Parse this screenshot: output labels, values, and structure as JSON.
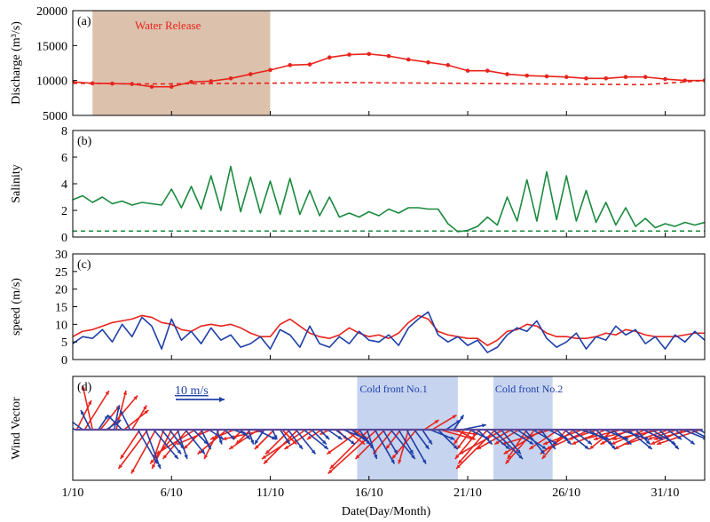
{
  "chart_data": [
    {
      "panel": "(a)",
      "type": "line",
      "ylabel": "Discharge (m³/s)",
      "ylim": [
        5000,
        20000
      ],
      "yticks": [
        5000,
        10000,
        15000,
        20000
      ],
      "annotation": "Water Release",
      "shaded_x": [
        2,
        11
      ],
      "series": [
        {
          "style": "solid-markers",
          "color": "#e8241c",
          "x": [
            1,
            2,
            3,
            4,
            5,
            6,
            7,
            8,
            9,
            10,
            11,
            12,
            13,
            14,
            15,
            16,
            17,
            18,
            19,
            20,
            21,
            22,
            23,
            24,
            25,
            26,
            27,
            28,
            29,
            30,
            31,
            32,
            33
          ],
          "values": [
            9800,
            9600,
            9550,
            9500,
            9100,
            9100,
            9800,
            9900,
            10300,
            10900,
            11500,
            12200,
            12300,
            13300,
            13700,
            13800,
            13500,
            13000,
            12600,
            12200,
            11400,
            11400,
            10900,
            10700,
            10600,
            10500,
            10300,
            10300,
            10500,
            10500,
            10200,
            10000,
            10000
          ]
        },
        {
          "style": "dashed",
          "color": "#e8241c",
          "x": [
            1,
            5,
            10,
            15,
            20,
            25,
            30,
            33
          ],
          "values": [
            9600,
            9500,
            9600,
            9700,
            9600,
            9500,
            9400,
            10000
          ]
        }
      ]
    },
    {
      "panel": "(b)",
      "type": "line",
      "ylabel": "Salinity",
      "ylim": [
        0,
        8
      ],
      "yticks": [
        0,
        2,
        4,
        6,
        8
      ],
      "series": [
        {
          "style": "solid",
          "color": "#1a8a3e",
          "x": [
            1,
            1.5,
            2,
            2.5,
            3,
            3.5,
            4,
            4.5,
            5,
            5.5,
            6,
            6.5,
            7,
            7.5,
            8,
            8.5,
            9,
            9.5,
            10,
            10.5,
            11,
            11.5,
            12,
            12.5,
            13,
            13.5,
            14,
            14.5,
            15,
            15.5,
            16,
            16.5,
            17,
            17.5,
            18,
            18.5,
            19,
            19.5,
            20,
            20.5,
            21,
            21.5,
            22,
            22.5,
            23,
            23.5,
            24,
            24.5,
            25,
            25.5,
            26,
            26.5,
            27,
            27.5,
            28,
            28.5,
            29,
            29.5,
            30,
            30.5,
            31,
            31.5,
            32,
            32.5,
            33
          ],
          "values": [
            2.8,
            3.1,
            2.6,
            3.0,
            2.5,
            2.7,
            2.4,
            2.6,
            2.5,
            2.4,
            3.6,
            2.2,
            3.8,
            2.1,
            4.6,
            2.0,
            5.3,
            1.9,
            4.5,
            1.8,
            4.2,
            1.7,
            4.4,
            1.7,
            3.5,
            1.6,
            3.0,
            1.5,
            1.8,
            1.5,
            1.9,
            1.6,
            2.1,
            1.8,
            2.2,
            2.2,
            2.1,
            2.1,
            1.0,
            0.4,
            0.5,
            0.8,
            1.5,
            0.9,
            3.0,
            1.2,
            4.3,
            1.2,
            4.9,
            1.3,
            4.6,
            1.2,
            3.5,
            1.1,
            2.6,
            0.9,
            2.2,
            0.8,
            1.4,
            0.7,
            1.0,
            0.8,
            1.1,
            0.9,
            1.1
          ]
        },
        {
          "style": "dashed",
          "color": "#1a8a3e",
          "x": [
            1,
            33
          ],
          "values": [
            0.45,
            0.45
          ]
        }
      ]
    },
    {
      "panel": "(c)",
      "type": "line",
      "ylabel": "speed (m/s)",
      "ylim": [
        0,
        30
      ],
      "yticks": [
        0,
        5,
        10,
        15,
        20,
        25,
        30
      ],
      "series": [
        {
          "style": "solid",
          "color": "#e8241c",
          "x": [
            1,
            1.5,
            2,
            2.5,
            3,
            3.5,
            4,
            4.5,
            5,
            5.5,
            6,
            6.5,
            7,
            7.5,
            8,
            8.5,
            9,
            9.5,
            10,
            10.5,
            11,
            11.5,
            12,
            12.5,
            13,
            13.5,
            14,
            14.5,
            15,
            15.5,
            16,
            16.5,
            17,
            17.5,
            18,
            18.5,
            19,
            19.5,
            20,
            20.5,
            21,
            21.5,
            22,
            22.5,
            23,
            23.5,
            24,
            24.5,
            25,
            25.5,
            26,
            26.5,
            27,
            27.5,
            28,
            28.5,
            29,
            29.5,
            30,
            30.5,
            31,
            31.5,
            32,
            32.5,
            33
          ],
          "values": [
            6.5,
            8.0,
            8.5,
            9.5,
            10.5,
            11.0,
            11.5,
            12.5,
            12.0,
            10.5,
            10.0,
            8.5,
            8.0,
            9.5,
            10.0,
            9.5,
            10.0,
            9.0,
            7.5,
            6.5,
            6.5,
            10.0,
            11.5,
            9.5,
            7.5,
            6.5,
            6.0,
            7.0,
            9.0,
            7.5,
            6.5,
            7.0,
            6.0,
            7.5,
            10.5,
            12.5,
            11.5,
            8.0,
            7.0,
            6.5,
            6.0,
            6.0,
            4.0,
            5.5,
            8.0,
            8.5,
            10.0,
            9.5,
            7.5,
            6.5,
            6.5,
            6.0,
            6.0,
            6.5,
            7.5,
            7.0,
            8.5,
            8.0,
            7.0,
            6.5,
            6.5,
            6.5,
            7.0,
            7.5,
            7.5
          ]
        },
        {
          "style": "solid",
          "color": "#1f3fa8",
          "x": [
            1,
            1.5,
            2,
            2.5,
            3,
            3.5,
            4,
            4.5,
            5,
            5.5,
            6,
            6.5,
            7,
            7.5,
            8,
            8.5,
            9,
            9.5,
            10,
            10.5,
            11,
            11.5,
            12,
            12.5,
            13,
            13.5,
            14,
            14.5,
            15,
            15.5,
            16,
            16.5,
            17,
            17.5,
            18,
            18.5,
            19,
            19.5,
            20,
            20.5,
            21,
            21.5,
            22,
            22.5,
            23,
            23.5,
            24,
            24.5,
            25,
            25.5,
            26,
            26.5,
            27,
            27.5,
            28,
            28.5,
            29,
            29.5,
            30,
            30.5,
            31,
            31.5,
            32,
            32.5,
            33
          ],
          "values": [
            4.5,
            6.5,
            6.0,
            8.5,
            5.0,
            10.0,
            6.5,
            12.0,
            9.5,
            3.0,
            11.5,
            5.5,
            8.0,
            4.5,
            9.0,
            5.5,
            7.0,
            3.5,
            4.5,
            6.5,
            3.0,
            8.5,
            7.0,
            3.5,
            9.5,
            4.5,
            3.5,
            6.5,
            4.5,
            8.0,
            5.5,
            5.0,
            7.0,
            4.0,
            9.0,
            11.5,
            13.5,
            7.0,
            5.0,
            6.5,
            4.0,
            5.5,
            2.0,
            3.5,
            7.0,
            9.0,
            8.0,
            11.0,
            6.0,
            3.5,
            5.0,
            7.5,
            3.0,
            6.5,
            5.5,
            9.5,
            7.0,
            8.5,
            4.5,
            6.5,
            3.0,
            7.0,
            5.0,
            8.0,
            5.5
          ]
        }
      ]
    },
    {
      "panel": "(d)",
      "type": "vector",
      "ylabel": "Wind Vector",
      "scale_label": "10 m/s",
      "annotations": [
        "Cold front No.1",
        "Cold front No.2"
      ],
      "shaded_x": [
        [
          15.4,
          20.5
        ],
        [
          22.3,
          25.3
        ]
      ],
      "series": [
        {
          "name": "",
          "color": "#e8241c",
          "x": [
            1.2,
            1.6,
            2.0,
            2.4,
            2.8,
            3.2,
            3.6,
            4.0,
            4.4,
            4.8,
            5.2,
            5.6,
            6.0,
            6.4,
            6.8,
            7.2,
            7.6,
            8.0,
            8.4,
            8.8,
            9.2,
            9.6,
            10.0,
            10.4,
            10.8,
            11.2,
            11.6,
            12.0,
            12.4,
            12.8,
            13.2,
            13.6,
            14.0,
            14.4,
            14.8,
            15.2,
            15.6,
            16.0,
            16.4,
            16.8,
            17.2,
            17.6,
            18.0,
            18.4,
            18.8,
            19.2,
            19.6,
            20.0,
            20.4,
            20.8,
            21.2,
            21.6,
            22.0,
            22.4,
            22.8,
            23.2,
            23.6,
            24.0,
            24.4,
            24.8,
            25.2,
            25.6,
            26.0,
            26.4,
            26.8,
            27.2,
            27.6,
            28.0,
            28.4,
            28.8,
            29.2,
            29.6,
            30.0,
            30.4,
            30.8,
            31.2,
            31.6,
            32.0,
            32.4,
            32.8
          ],
          "u": [
            3,
            5,
            -2,
            4,
            6,
            2,
            5,
            3,
            -4,
            -6,
            -5,
            -2,
            -4,
            -6,
            -5,
            -8,
            -4,
            -7,
            -3,
            -6,
            -5,
            -2,
            -3,
            -6,
            -9,
            -4,
            3,
            -5,
            -7,
            -9,
            -6,
            -3,
            -2,
            2,
            4,
            3,
            -7,
            -8,
            -10,
            -6,
            -4,
            -3,
            -2,
            -5,
            3,
            5,
            7,
            6,
            4,
            -2,
            -3,
            -5,
            -6,
            -8,
            -9,
            -7,
            -5,
            -4,
            -6,
            -8,
            -10,
            -6,
            -5,
            -7,
            -8,
            -9,
            -6,
            -7,
            -5,
            -8,
            -6,
            -9,
            -7,
            -8,
            -10,
            -9,
            -6,
            -7,
            -8,
            -9
          ],
          "v": [
            6,
            8,
            9,
            5,
            7,
            8,
            4,
            5,
            -6,
            -8,
            -9,
            -6,
            -8,
            -7,
            -6,
            -5,
            -4,
            -3,
            -6,
            -5,
            -2,
            -2,
            -3,
            -4,
            -2,
            -4,
            -3,
            -5,
            -7,
            -6,
            -4,
            -2,
            -1,
            -2,
            -3,
            -2,
            -5,
            -8,
            -9,
            -6,
            -5,
            -4,
            -7,
            -6,
            2,
            3,
            -2,
            -1,
            -2,
            -3,
            -4,
            -6,
            -7,
            -8,
            -5,
            -4,
            -3,
            -6,
            -7,
            -5,
            -3,
            -4,
            -6,
            -5,
            -3,
            -4,
            -2,
            -3,
            -4,
            -2,
            -3,
            -2,
            -3,
            -4,
            -2,
            -3,
            -2,
            -3,
            -2,
            -3
          ]
        },
        {
          "name": "",
          "color": "#1f3fa8",
          "x": [
            1.1,
            1.5,
            1.9,
            2.3,
            2.7,
            3.1,
            3.5,
            3.9,
            4.3,
            4.7,
            5.1,
            5.5,
            5.9,
            6.3,
            6.7,
            7.1,
            7.5,
            7.9,
            8.3,
            8.7,
            9.1,
            9.5,
            9.9,
            10.3,
            10.7,
            11.1,
            11.5,
            11.9,
            12.3,
            12.7,
            13.1,
            13.5,
            13.9,
            14.3,
            14.7,
            15.1,
            15.5,
            15.9,
            16.3,
            16.7,
            17.1,
            17.5,
            17.9,
            18.3,
            18.7,
            19.1,
            19.5,
            19.9,
            20.3,
            20.7,
            21.1,
            21.5,
            21.9,
            22.3,
            22.7,
            23.1,
            23.5,
            23.9,
            24.3,
            24.7,
            25.1,
            25.5,
            25.9,
            26.3,
            26.7,
            27.1,
            27.5,
            27.9,
            28.3,
            28.7,
            29.1,
            29.5,
            29.9,
            30.3,
            30.7,
            31.1,
            31.5,
            31.9,
            32.3,
            32.7
          ],
          "u": [
            -3,
            -4,
            -2,
            2,
            3,
            1,
            -3,
            -2,
            4,
            3,
            5,
            4,
            3,
            2,
            4,
            3,
            2,
            3,
            1,
            2,
            3,
            2,
            1,
            4,
            -2,
            1,
            2,
            3,
            4,
            5,
            3,
            2,
            3,
            4,
            5,
            4,
            3,
            2,
            4,
            3,
            5,
            3,
            4,
            3,
            2,
            5,
            4,
            3,
            2,
            5,
            4,
            3,
            5,
            6,
            4,
            5,
            6,
            4,
            5,
            3,
            4,
            3,
            5,
            4,
            6,
            5,
            4,
            5,
            4,
            6,
            5,
            3,
            4,
            5,
            4,
            3,
            4,
            5,
            6,
            4
          ],
          "v": [
            2,
            3,
            4,
            3,
            2,
            5,
            3,
            4,
            -7,
            -8,
            -6,
            -5,
            -4,
            -6,
            -5,
            -3,
            -4,
            -2,
            -3,
            -2,
            -1,
            -2,
            -3,
            -2,
            -3,
            -2,
            -3,
            -4,
            -5,
            -4,
            -3,
            -2,
            -2,
            -3,
            -2,
            -3,
            -4,
            -6,
            -7,
            -5,
            -6,
            -5,
            -7,
            -4,
            -3,
            -2,
            -4,
            2,
            3,
            1,
            -2,
            -3,
            -4,
            -6,
            -5,
            -3,
            -4,
            -5,
            -3,
            -4,
            -2,
            -3,
            -4,
            -3,
            -2,
            -3,
            -4,
            -2,
            -3,
            -2,
            -4,
            -3,
            -2,
            -3,
            -4,
            -2,
            -3,
            -2,
            -3,
            -2
          ]
        }
      ]
    }
  ],
  "xaxis": {
    "xlabel": "Date(Day/Month)",
    "ticks": [
      "1/10",
      "6/10",
      "11/10",
      "16/10",
      "21/10",
      "26/10",
      "31/10"
    ],
    "tick_days": [
      1,
      6,
      11,
      16,
      21,
      26,
      31
    ],
    "xlim": [
      1,
      33
    ]
  }
}
